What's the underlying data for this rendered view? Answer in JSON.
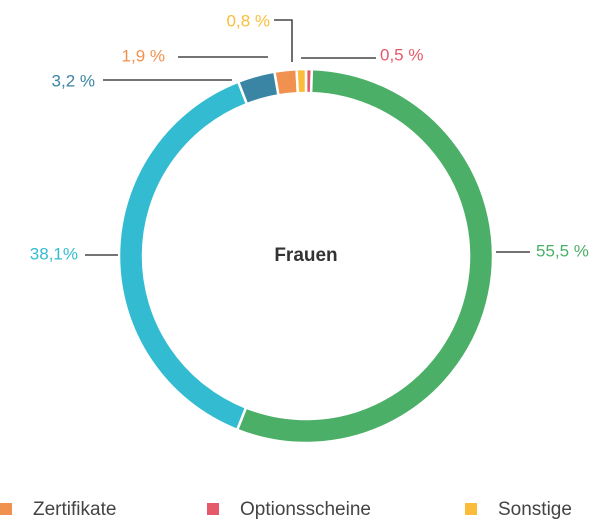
{
  "chart_data": {
    "type": "donut",
    "center_label": "Frauen",
    "values": [
      0.5,
      55.5,
      38.1,
      3.2,
      1.9,
      0.8
    ],
    "value_labels": [
      "0,5 %",
      "55,5 %",
      "38,1%",
      "3,2 %",
      "1,9 %",
      "0,8 %"
    ],
    "colors": [
      "#e5596a",
      "#4caf68",
      "#33bcd1",
      "#3a84a4",
      "#f0914f",
      "#fbbd39"
    ],
    "legend": [
      {
        "name": "Zertifikate",
        "color": "#f0914f"
      },
      {
        "name": "Optionsscheine",
        "color": "#e5596a"
      },
      {
        "name": "Sonstige",
        "color": "#fbbd39"
      }
    ]
  }
}
